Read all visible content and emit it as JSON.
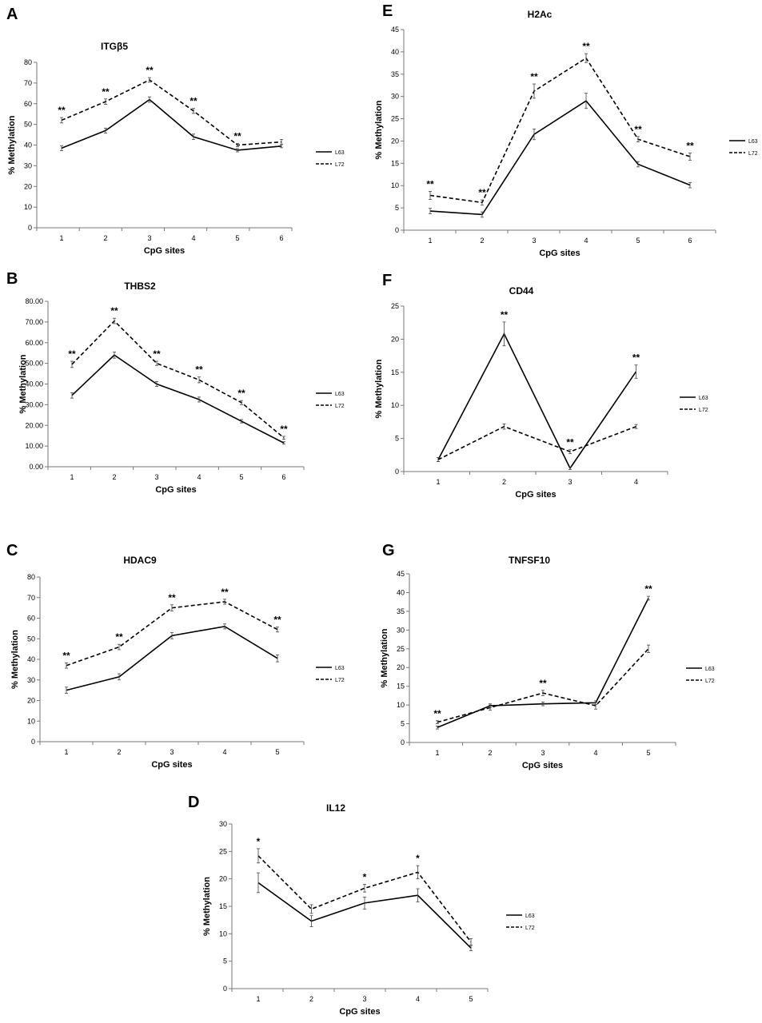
{
  "figure": {
    "legend_names": [
      "L63",
      "L72"
    ]
  },
  "chart_data": [
    {
      "panel": "A",
      "type": "line",
      "title": "ITGβ5",
      "xlabel": "CpG sites",
      "ylabel": "% Methylation",
      "categories": [
        "1",
        "2",
        "3",
        "4",
        "5",
        "6"
      ],
      "ylim": [
        0,
        80
      ],
      "yticks": [
        "0",
        "10",
        "20",
        "30",
        "40",
        "50",
        "60",
        "70",
        "80"
      ],
      "series": [
        {
          "name": "L63",
          "style": "solid",
          "values": [
            38.5,
            47,
            62,
            44,
            37.5,
            39.5
          ],
          "errors": [
            1.2,
            1.2,
            1.3,
            1.3,
            0.8,
            0.8
          ]
        },
        {
          "name": "L72",
          "style": "dashed",
          "values": [
            52,
            61,
            71.5,
            56.5,
            40,
            41.5
          ],
          "errors": [
            1.3,
            1.3,
            1.1,
            1.2,
            0.8,
            1.2
          ]
        }
      ],
      "annotations": [
        {
          "x": "1",
          "text": "**"
        },
        {
          "x": "2",
          "text": "**"
        },
        {
          "x": "3",
          "text": "**"
        },
        {
          "x": "4",
          "text": "**"
        },
        {
          "x": "5",
          "text": "**"
        }
      ]
    },
    {
      "panel": "B",
      "type": "line",
      "title": "THBS2",
      "xlabel": "CpG sites",
      "ylabel": "% Methylation",
      "categories": [
        "1",
        "2",
        "3",
        "4",
        "5",
        "6"
      ],
      "ylim": [
        0,
        80
      ],
      "yticks": [
        "0.00",
        "10.00",
        "20.00",
        "30.00",
        "40.00",
        "50.00",
        "60.00",
        "70.00",
        "80.00"
      ],
      "series": [
        {
          "name": "L63",
          "style": "solid",
          "values": [
            34.5,
            54,
            40,
            32.5,
            22,
            11.5
          ],
          "errors": [
            1.3,
            1.5,
            1.2,
            1.2,
            0.8,
            0.6
          ]
        },
        {
          "name": "L72",
          "style": "dashed",
          "values": [
            49.5,
            70.5,
            50,
            42,
            31,
            14
          ],
          "errors": [
            1.5,
            1.3,
            1.0,
            1.4,
            1.0,
            0.7
          ]
        }
      ],
      "annotations": [
        {
          "x": "1",
          "text": "**"
        },
        {
          "x": "2",
          "text": "**"
        },
        {
          "x": "3",
          "text": "**"
        },
        {
          "x": "4",
          "text": "**"
        },
        {
          "x": "5",
          "text": "**"
        },
        {
          "x": "6",
          "text": "**"
        }
      ]
    },
    {
      "panel": "C",
      "type": "line",
      "title": "HDAC9",
      "xlabel": "CpG sites",
      "ylabel": "% Methylation",
      "categories": [
        "1",
        "2",
        "3",
        "4",
        "5"
      ],
      "ylim": [
        0,
        80
      ],
      "yticks": [
        "0",
        "10",
        "20",
        "30",
        "40",
        "50",
        "60",
        "70",
        "80"
      ],
      "series": [
        {
          "name": "L63",
          "style": "solid",
          "values": [
            25,
            31.5,
            51.5,
            56,
            40.5
          ],
          "errors": [
            1.5,
            1.5,
            1.5,
            1.2,
            1.7
          ]
        },
        {
          "name": "L72",
          "style": "dashed",
          "values": [
            37,
            46,
            65,
            68,
            54.5
          ],
          "errors": [
            1.3,
            1.3,
            1.5,
            1.2,
            1.2
          ]
        }
      ],
      "annotations": [
        {
          "x": "1",
          "text": "**"
        },
        {
          "x": "2",
          "text": "**"
        },
        {
          "x": "3",
          "text": "**"
        },
        {
          "x": "4",
          "text": "**"
        },
        {
          "x": "5",
          "text": "**"
        }
      ]
    },
    {
      "panel": "D",
      "type": "line",
      "title": "IL12",
      "xlabel": "CpG sites",
      "ylabel": "% Methylation",
      "categories": [
        "1",
        "2",
        "3",
        "4",
        "5"
      ],
      "ylim": [
        0,
        30
      ],
      "yticks": [
        "0",
        "5",
        "10",
        "15",
        "20",
        "25",
        "30"
      ],
      "series": [
        {
          "name": "L63",
          "style": "solid",
          "values": [
            19.3,
            12.3,
            15.6,
            17,
            7.4
          ],
          "errors": [
            1.8,
            1.0,
            1.1,
            1.2,
            0.5
          ]
        },
        {
          "name": "L72",
          "style": "dashed",
          "values": [
            24.2,
            14.5,
            18.3,
            21.2,
            8.5
          ],
          "errors": [
            1.3,
            0.8,
            0.7,
            1.2,
            0.6
          ]
        }
      ],
      "annotations": [
        {
          "x": "1",
          "text": "*"
        },
        {
          "x": "3",
          "text": "*"
        },
        {
          "x": "4",
          "text": "*"
        }
      ]
    },
    {
      "panel": "E",
      "type": "line",
      "title": "H2Ac",
      "xlabel": "CpG sites",
      "ylabel": "% Methylation",
      "categories": [
        "1",
        "2",
        "3",
        "4",
        "5",
        "6"
      ],
      "ylim": [
        0,
        45
      ],
      "yticks": [
        "0",
        "5",
        "10",
        "15",
        "20",
        "25",
        "30",
        "35",
        "40",
        "45"
      ],
      "series": [
        {
          "name": "L63",
          "style": "solid",
          "values": [
            4.3,
            3.5,
            21.5,
            29,
            14.8,
            10.1
          ],
          "errors": [
            0.6,
            0.6,
            1.2,
            1.7,
            0.6,
            0.6
          ]
        },
        {
          "name": "L72",
          "style": "dashed",
          "values": [
            7.8,
            6.2,
            31.2,
            38.6,
            20.4,
            16.5
          ],
          "errors": [
            0.9,
            0.6,
            1.6,
            1.0,
            0.6,
            0.8
          ]
        }
      ],
      "annotations": [
        {
          "x": "1",
          "text": "**"
        },
        {
          "x": "2",
          "text": "**"
        },
        {
          "x": "3",
          "text": "**"
        },
        {
          "x": "4",
          "text": "**"
        },
        {
          "x": "5",
          "text": "**"
        },
        {
          "x": "6",
          "text": "**"
        }
      ]
    },
    {
      "panel": "F",
      "type": "line",
      "title": "CD44",
      "xlabel": "CpG sites",
      "ylabel": "% Methylation",
      "categories": [
        "1",
        "2",
        "3",
        "4"
      ],
      "ylim": [
        0,
        25
      ],
      "yticks": [
        "0",
        "5",
        "10",
        "15",
        "20",
        "25"
      ],
      "series": [
        {
          "name": "L63",
          "style": "solid",
          "values": [
            1.8,
            20.8,
            0.5,
            15.1
          ],
          "errors": [
            0.3,
            1.8,
            0.2,
            1.0
          ]
        },
        {
          "name": "L72",
          "style": "dashed",
          "values": [
            1.8,
            6.8,
            3.0,
            6.8
          ],
          "errors": [
            0.3,
            0.4,
            0.3,
            0.3
          ]
        }
      ],
      "annotations": [
        {
          "x": "2",
          "text": "**"
        },
        {
          "x": "3",
          "text": "**"
        },
        {
          "x": "4",
          "text": "**"
        }
      ]
    },
    {
      "panel": "G",
      "type": "line",
      "title": "TNFSF10",
      "xlabel": "CpG sites",
      "ylabel": "% Methylation",
      "categories": [
        "1",
        "2",
        "3",
        "4",
        "5"
      ],
      "ylim": [
        0,
        45
      ],
      "yticks": [
        "0",
        "5",
        "10",
        "15",
        "20",
        "25",
        "30",
        "35",
        "40",
        "45"
      ],
      "series": [
        {
          "name": "L63",
          "style": "solid",
          "values": [
            4,
            9.8,
            10.3,
            10.6,
            38.5
          ],
          "errors": [
            0.4,
            0.5,
            0.5,
            0.5,
            0.5
          ]
        },
        {
          "name": "L72",
          "style": "dashed",
          "values": [
            5.4,
            9.3,
            13.2,
            9.8,
            25
          ],
          "errors": [
            0.4,
            0.7,
            0.7,
            0.9,
            1.0
          ]
        }
      ],
      "annotations": [
        {
          "x": "1",
          "text": "**"
        },
        {
          "x": "3",
          "text": "**"
        },
        {
          "x": "5",
          "text": "**"
        }
      ]
    }
  ]
}
